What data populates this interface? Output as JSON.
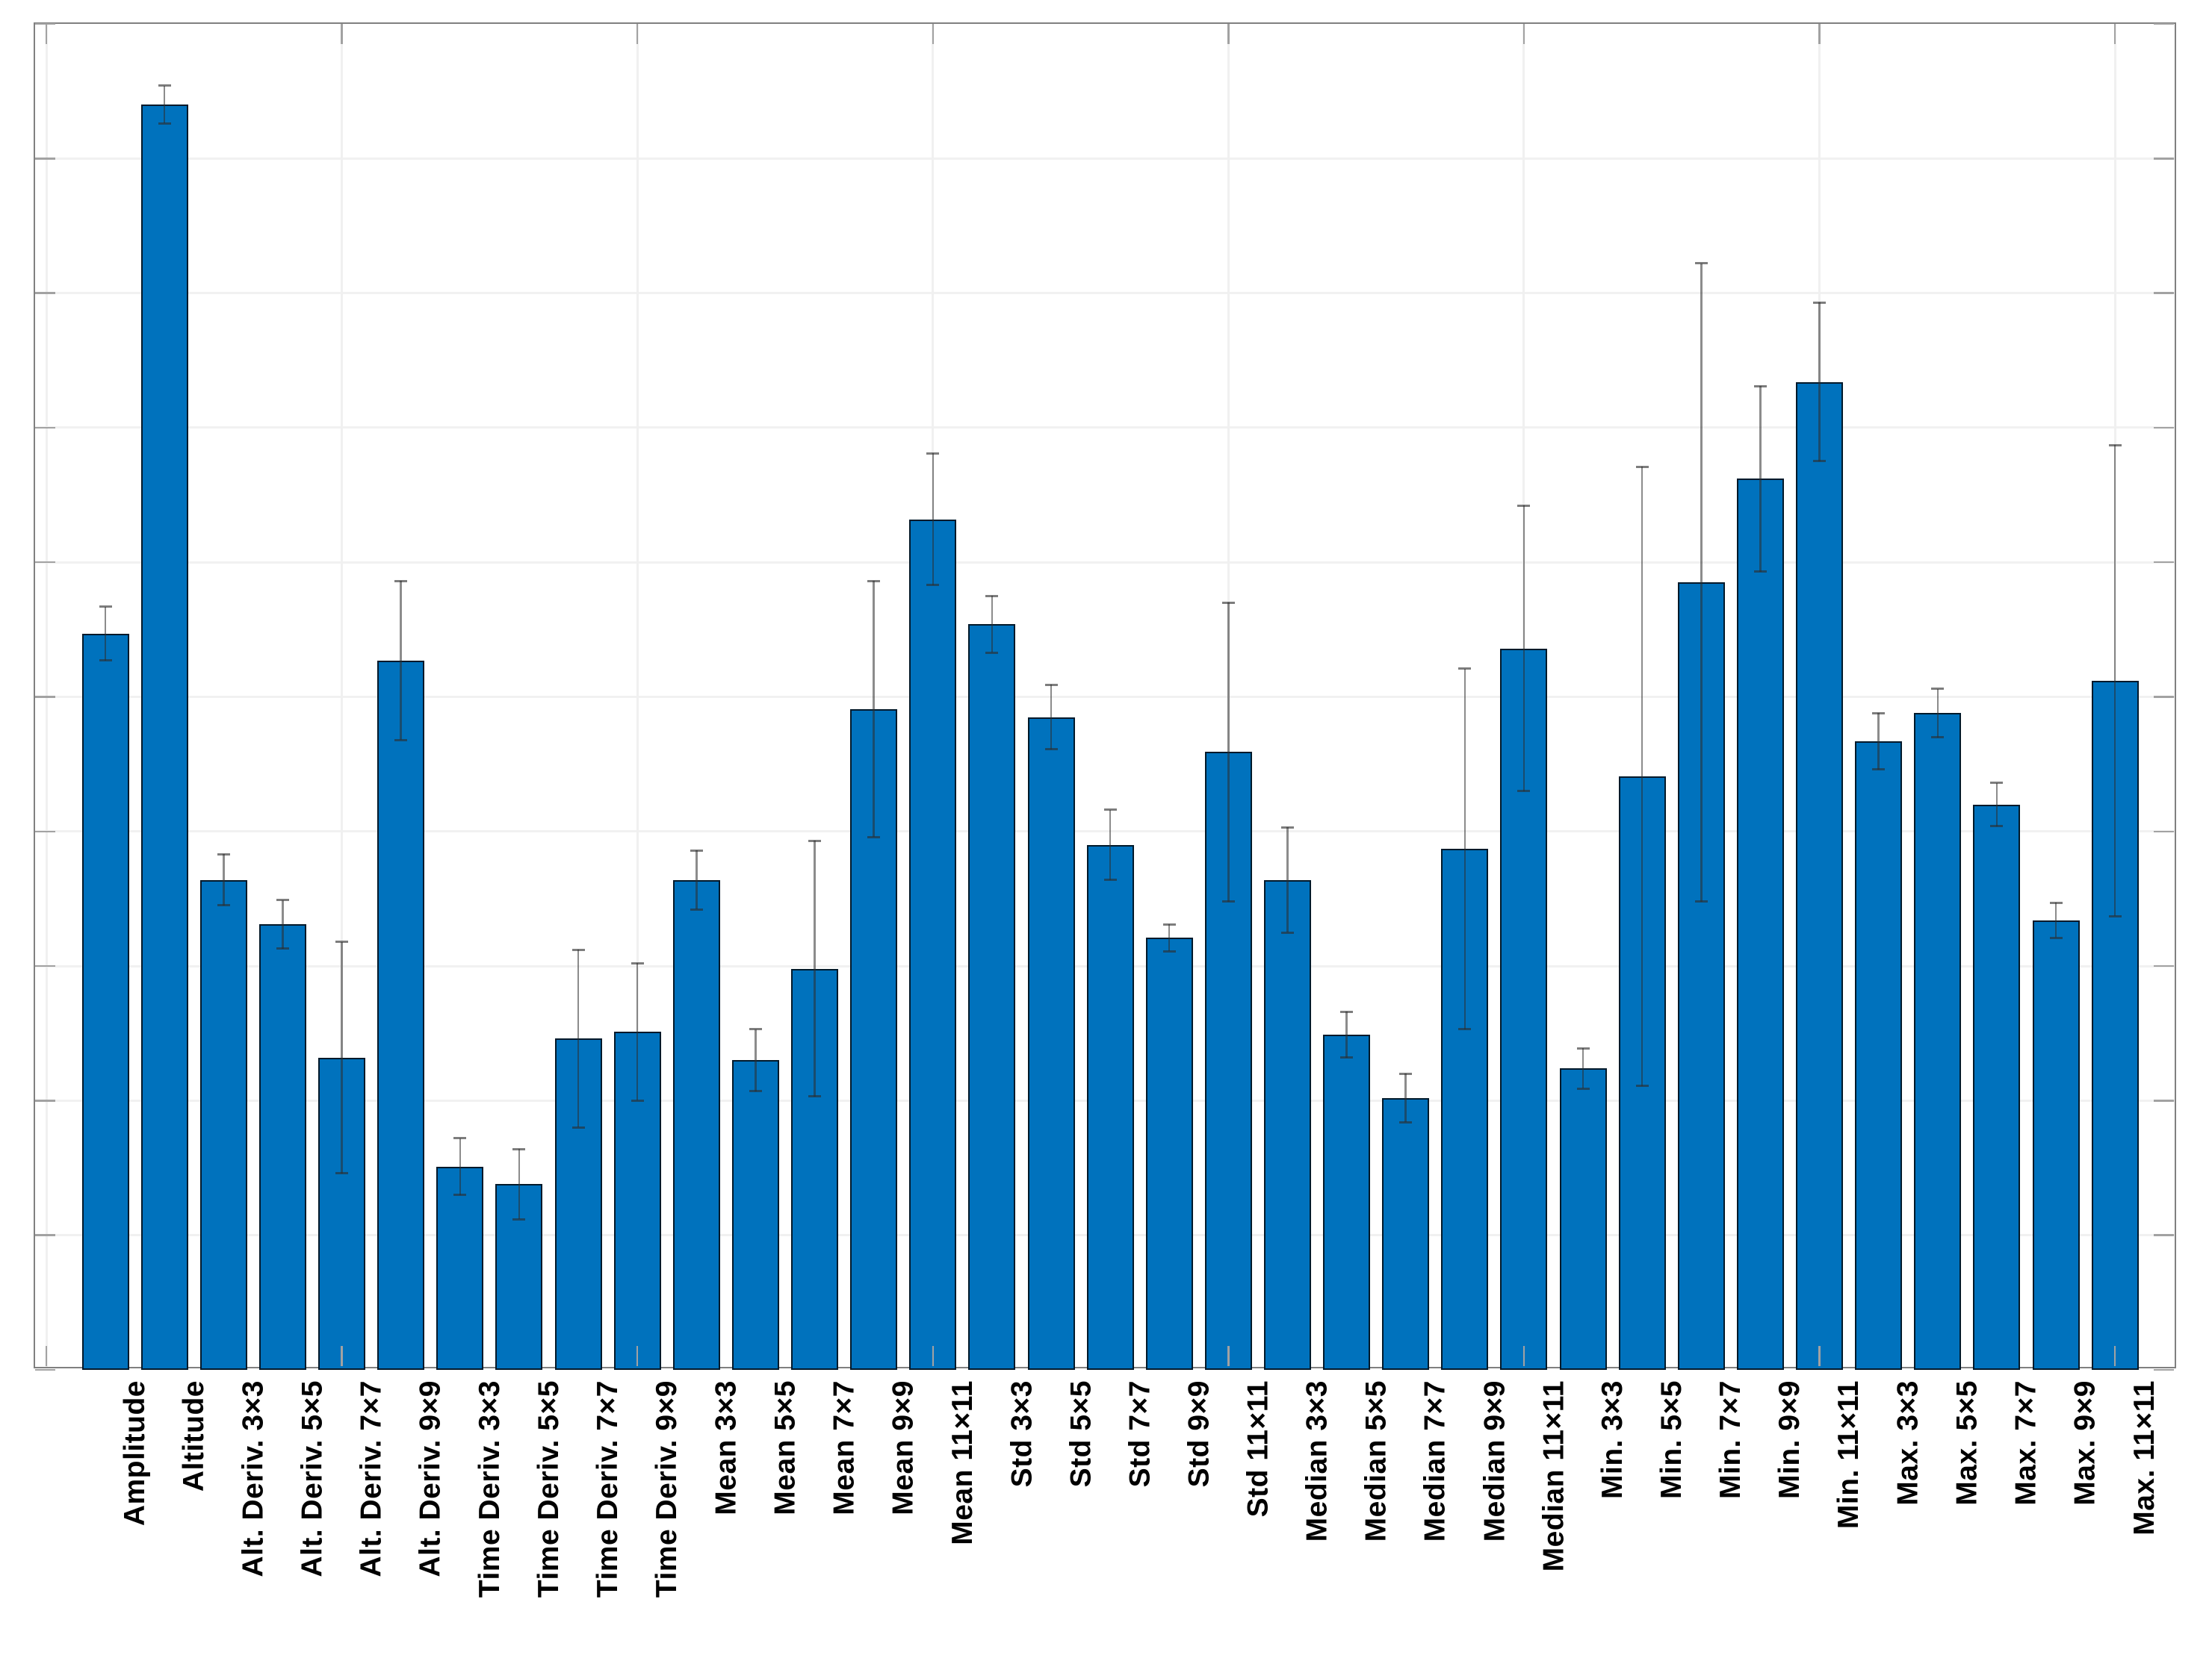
{
  "chart_data": {
    "type": "bar",
    "title": "",
    "xlabel": "",
    "ylabel": "",
    "categories": [
      "Amplitude",
      "Altitude",
      "Alt. Deriv. 3×3",
      "Alt. Deriv. 5×5",
      "Alt. Deriv. 7×7",
      "Alt. Deriv. 9×9",
      "Time Deriv. 3×3",
      "Time Deriv. 5×5",
      "Time Deriv. 7×7",
      "Time Deriv. 9×9",
      "Mean 3×3",
      "Mean 5×5",
      "Mean 7×7",
      "Mean 9×9",
      "Mean 11×11",
      "Std 3×3",
      "Std 5×5",
      "Std 7×7",
      "Std 9×9",
      "Std 11×11",
      "Median 3×3",
      "Median 5×5",
      "Median 7×7",
      "Median 9×9",
      "Median 11×11",
      "Min. 3×3",
      "Min. 5×5",
      "Min. 7×7",
      "Min. 9×9",
      "Min. 11×11",
      "Max. 3×3",
      "Max. 5×5",
      "Max. 7×7",
      "Max. 9×9",
      "Max. 11×11"
    ],
    "values": [
      54.7,
      94.0,
      36.4,
      33.1,
      23.2,
      52.7,
      15.1,
      13.8,
      24.6,
      25.1,
      36.4,
      23.0,
      29.8,
      49.1,
      63.2,
      55.4,
      48.5,
      39.0,
      32.1,
      45.9,
      36.4,
      24.9,
      20.2,
      38.7,
      53.6,
      22.4,
      44.1,
      58.5,
      66.2,
      73.4,
      46.7,
      48.8,
      42.0,
      33.4,
      51.2
    ],
    "errors": [
      2.0,
      1.4,
      1.9,
      1.8,
      8.6,
      5.9,
      2.1,
      2.6,
      6.6,
      5.1,
      2.2,
      2.3,
      9.5,
      9.5,
      4.9,
      2.1,
      2.4,
      2.6,
      1.0,
      11.1,
      3.9,
      1.7,
      1.8,
      13.4,
      10.6,
      1.5,
      23.0,
      23.7,
      6.9,
      5.9,
      2.1,
      1.8,
      1.6,
      1.3,
      17.5
    ],
    "ylim": [
      0,
      100
    ],
    "y_major_divisions": 10,
    "y_tick_labels_visible": false,
    "x_major_tick_units": [
      0,
      5,
      10,
      15,
      20,
      25,
      30,
      35
    ],
    "grid": "on",
    "legend": "none",
    "error_bars": "symmetric, vertical with caps",
    "bar_color": "#0072BD",
    "bar_edge_color": "#14273a",
    "error_bar_color": "#5a5a5a",
    "axis_box_color": "#808080",
    "gridline_color": "#f1f1f1",
    "background_color": "#ffffff"
  }
}
